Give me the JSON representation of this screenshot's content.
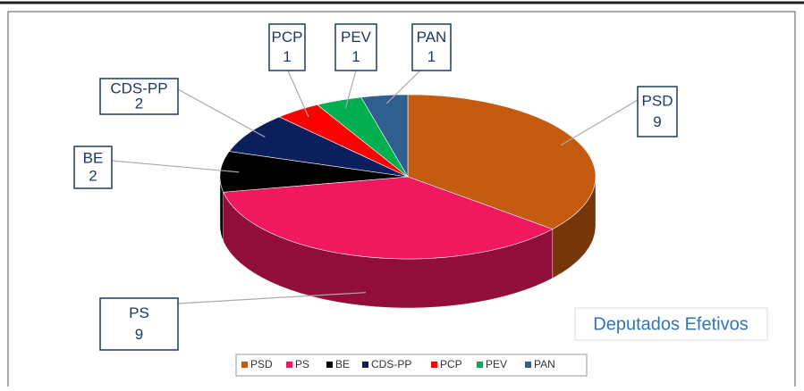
{
  "chart_data": {
    "type": "pie",
    "title": "Deputados Efetivos",
    "categories": [
      "PSD",
      "PS",
      "BE",
      "CDS-PP",
      "PCP",
      "PEV",
      "PAN"
    ],
    "values": [
      9,
      9,
      2,
      2,
      1,
      1,
      1
    ],
    "colors": [
      "#c55a11",
      "#f0185f",
      "#000000",
      "#0a1f5c",
      "#ff0000",
      "#00b050",
      "#2e5f8f"
    ],
    "legend": "bottom"
  }
}
